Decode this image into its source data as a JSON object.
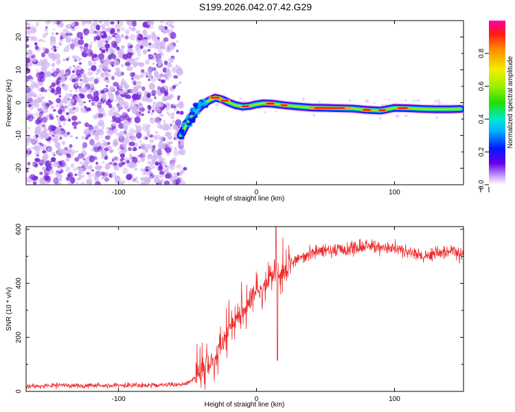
{
  "figure_title": "S199.2026.042.07.42.G29",
  "colors": {
    "noise": "#7a2ad8",
    "noise_light": "#d2b6f2",
    "snr_line": "#ee2a2a",
    "axis": "#000000"
  },
  "chart_data": [
    {
      "type": "heatmap",
      "title": "S199.2026.042.07.42.G29",
      "xlabel": "Height of straight line (km)",
      "ylabel": "Frequency (Hz)",
      "xlim": [
        -167,
        150
      ],
      "ylim": [
        -25,
        25
      ],
      "xticks": [
        -100,
        0,
        100
      ],
      "yticks": [
        -20,
        -10,
        0,
        10,
        20
      ],
      "noise_region_x": [
        -167,
        -55
      ],
      "ridge": {
        "x": [
          -55,
          -50,
          -45,
          -40,
          -35,
          -30,
          -25,
          -20,
          -15,
          -10,
          -5,
          0,
          5,
          10,
          15,
          20,
          30,
          40,
          50,
          60,
          70,
          80,
          90,
          100,
          110,
          120,
          130,
          140,
          148
        ],
        "freq": [
          -10,
          -6,
          -3,
          -1,
          0.5,
          1.5,
          1,
          0,
          -0.8,
          -1.2,
          -1,
          -0.5,
          -0.2,
          -0.3,
          -0.5,
          -0.8,
          -1.2,
          -1.5,
          -1.6,
          -1.7,
          -1.8,
          -2.2,
          -2.4,
          -1.6,
          -1.7,
          -1.9,
          -2,
          -2,
          -1.9
        ]
      },
      "colorbar": {
        "label": "Normalized spectral amplitude",
        "range": [
          0,
          1
        ],
        "ticks": [
          "0.0",
          "0.2",
          "0.4",
          "0.6",
          "0.8"
        ],
        "tick_values": [
          0,
          0.2,
          0.4,
          0.6,
          0.8
        ]
      }
    },
    {
      "type": "line",
      "xlabel": "Height of straight line (km)",
      "ylabel": "SNR (10 * v/v)",
      "xlim": [
        -167,
        150
      ],
      "ylim": [
        0,
        610
      ],
      "xticks": [
        -100,
        0,
        100
      ],
      "yticks": [
        0,
        200,
        400,
        600
      ],
      "series": [
        {
          "name": "SNR",
          "x": [
            -167,
            -140,
            -110,
            -80,
            -60,
            -50,
            -45,
            -40,
            -35,
            -30,
            -25,
            -20,
            -15,
            -10,
            -5,
            0,
            5,
            10,
            15,
            20,
            25,
            30,
            40,
            60,
            80,
            100,
            120,
            140,
            150
          ],
          "values": [
            18,
            22,
            22,
            23,
            24,
            28,
            50,
            80,
            90,
            120,
            170,
            230,
            270,
            300,
            330,
            360,
            400,
            420,
            430,
            440,
            470,
            495,
            515,
            525,
            535,
            530,
            500,
            520,
            510
          ]
        }
      ]
    }
  ]
}
